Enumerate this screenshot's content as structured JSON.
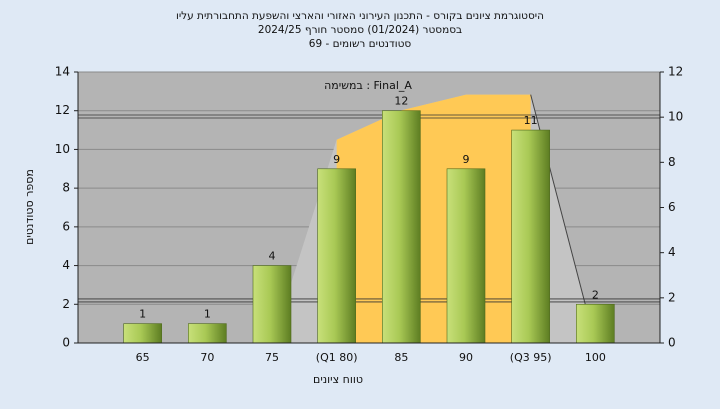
{
  "chart_data": {
    "type": "bar",
    "title": [
      "היסטוגרמת ציונים בקורס - התכנון העירוני האזורי והארצי והשפעת התחבורתית עליו",
      "בסמסטר  (01/2024)  סמסטר חורף  2024/25",
      "סטודנטים רשומים - 69"
    ],
    "annotation": "Final_A : במשימה",
    "x_label": "טווח ציונים",
    "y_label": "מספר סטודנטים",
    "categories": [
      "65",
      "70",
      "75",
      "(Q1 80)",
      "85",
      "90",
      "(Q3 95)",
      "100"
    ],
    "values": [
      1,
      1,
      4,
      9,
      12,
      9,
      11,
      2
    ],
    "color": "#8db33a",
    "ylim": [
      0,
      14
    ],
    "yticks": [
      0,
      2,
      4,
      6,
      8,
      10,
      12,
      14
    ],
    "y2lim": [
      0,
      12
    ],
    "y2ticks": [
      0,
      2,
      4,
      6,
      8,
      10,
      12
    ],
    "area": {
      "axis": "y2",
      "values": [
        0,
        0,
        0,
        9,
        10.3,
        11,
        11,
        0
      ],
      "color": "#c4c4c4",
      "highlight_color": "#ffc955",
      "highlight_from": "(Q1 80)",
      "highlight_to": "(Q3 95)"
    },
    "hlines": [
      11.7,
      2.2
    ],
    "grid": true
  }
}
